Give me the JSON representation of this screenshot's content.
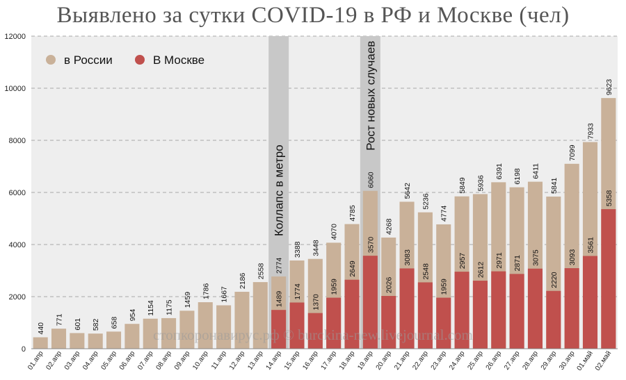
{
  "chart_data": {
    "type": "bar",
    "title": "Выявлено за сутки COVID-19 в РФ и Москве (чел)",
    "categories": [
      "01.апр",
      "02.апр",
      "03.апр",
      "04.апр",
      "05.апр",
      "06.апр",
      "07.апр",
      "08.апр",
      "09.апр",
      "10.апр",
      "11.апр",
      "12.апр",
      "13.апр",
      "14.апр",
      "15.апр",
      "16.апр",
      "17.апр",
      "18.апр",
      "19.апр",
      "20.апр",
      "21.апр",
      "22.апр",
      "23.апр",
      "24.апр",
      "25.апр",
      "26.апр",
      "27.апр",
      "28.апр",
      "29.апр",
      "30.апр",
      "01.май",
      "02.май"
    ],
    "series": [
      {
        "name": "в России",
        "color": "#c9b199",
        "values": [
          440,
          771,
          601,
          582,
          658,
          954,
          1154,
          1175,
          1459,
          1786,
          1667,
          2186,
          2558,
          2774,
          3388,
          3448,
          4070,
          4785,
          6060,
          4268,
          5642,
          5236,
          4774,
          5849,
          5936,
          6391,
          6198,
          6411,
          5841,
          7099,
          7933,
          9623
        ]
      },
      {
        "name": "В Москве",
        "color": "#c0504d",
        "values": [
          null,
          null,
          null,
          null,
          null,
          null,
          null,
          null,
          null,
          null,
          null,
          null,
          null,
          1489,
          1774,
          1370,
          1959,
          2649,
          3570,
          2026,
          3083,
          2548,
          1959,
          2957,
          2612,
          2971,
          2871,
          3075,
          2220,
          3093,
          3561,
          5358
        ]
      }
    ],
    "ylim": [
      0,
      12000
    ],
    "yticks": [
      0,
      2000,
      4000,
      6000,
      8000,
      10000,
      12000
    ],
    "grid": "horizontal dashed",
    "legend": "top-left",
    "annotations": [
      {
        "text": "Коллапс в метро",
        "category": "14.апр"
      },
      {
        "text": "Рост новых случаев",
        "category": "19.апр"
      }
    ],
    "watermark": "стопкоронавирус.рф © burckina-new.livejournal.com",
    "xlabel": "",
    "ylabel": ""
  }
}
